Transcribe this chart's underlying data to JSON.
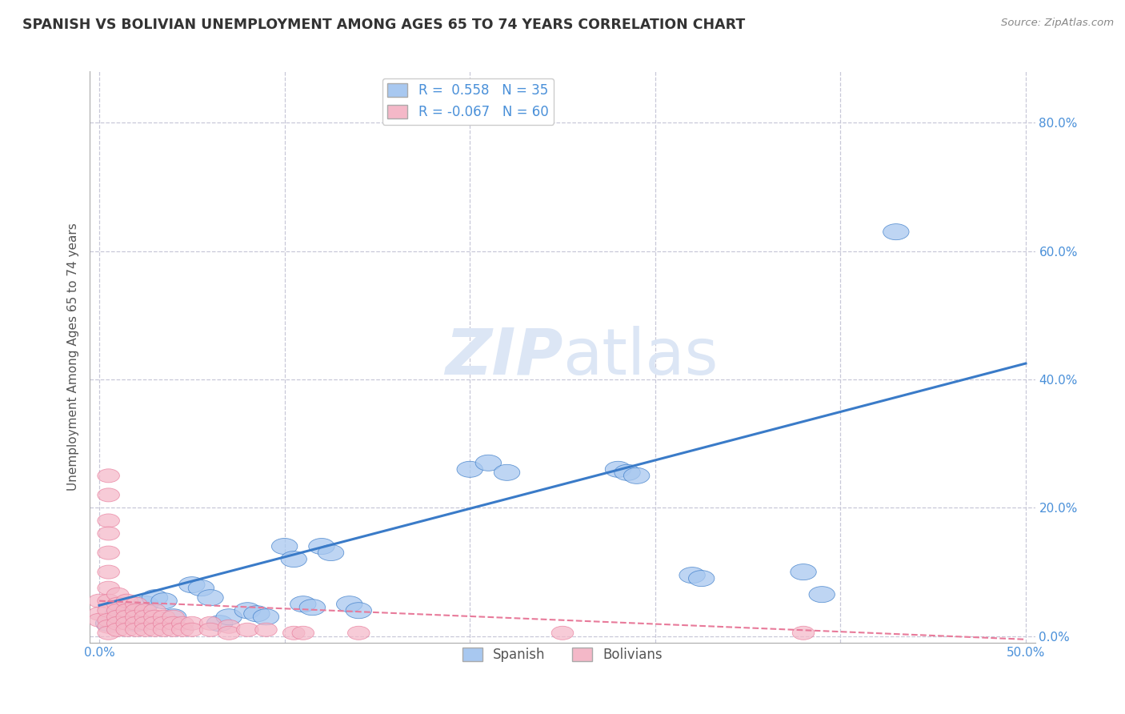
{
  "title": "SPANISH VS BOLIVIAN UNEMPLOYMENT AMONG AGES 65 TO 74 YEARS CORRELATION CHART",
  "source": "Source: ZipAtlas.com",
  "ylabel": "Unemployment Among Ages 65 to 74 years",
  "xlim": [
    -0.005,
    0.505
  ],
  "ylim": [
    -0.01,
    0.88
  ],
  "xticks": [
    0.0,
    0.1,
    0.2,
    0.3,
    0.4,
    0.5
  ],
  "yticks": [
    0.0,
    0.2,
    0.4,
    0.6,
    0.8
  ],
  "xtick_labels": [
    "0.0%",
    "",
    "",
    "",
    "",
    "50.0%"
  ],
  "ytick_labels_right": [
    "0.0%",
    "20.0%",
    "40.0%",
    "60.0%",
    "80.0%"
  ],
  "spanish_R": 0.558,
  "spanish_N": 35,
  "bolivian_R": -0.067,
  "bolivian_N": 60,
  "spanish_color": "#a8c8f0",
  "bolivian_color": "#f4b8c8",
  "spanish_line_color": "#3a7bc8",
  "bolivian_line_color": "#e87a9a",
  "background_color": "#ffffff",
  "grid_color": "#c8c8d8",
  "title_color": "#333333",
  "axis_color": "#4a90d9",
  "watermark_color": "#dce6f5",
  "legend_label_spanish": "Spanish",
  "legend_label_bolivians": "Bolivians",
  "spanish_trend_start_y": 0.048,
  "spanish_trend_end_y": 0.425,
  "bolivian_trend_start_y": 0.055,
  "bolivian_trend_end_y": -0.005,
  "spanish_points": [
    [
      0.005,
      0.02
    ],
    [
      0.01,
      0.035
    ],
    [
      0.015,
      0.04
    ],
    [
      0.02,
      0.02
    ],
    [
      0.025,
      0.05
    ],
    [
      0.03,
      0.06
    ],
    [
      0.035,
      0.055
    ],
    [
      0.04,
      0.03
    ],
    [
      0.05,
      0.08
    ],
    [
      0.055,
      0.075
    ],
    [
      0.06,
      0.06
    ],
    [
      0.065,
      0.02
    ],
    [
      0.07,
      0.03
    ],
    [
      0.08,
      0.04
    ],
    [
      0.085,
      0.035
    ],
    [
      0.09,
      0.03
    ],
    [
      0.1,
      0.14
    ],
    [
      0.105,
      0.12
    ],
    [
      0.11,
      0.05
    ],
    [
      0.115,
      0.045
    ],
    [
      0.12,
      0.14
    ],
    [
      0.125,
      0.13
    ],
    [
      0.135,
      0.05
    ],
    [
      0.14,
      0.04
    ],
    [
      0.2,
      0.26
    ],
    [
      0.21,
      0.27
    ],
    [
      0.22,
      0.255
    ],
    [
      0.28,
      0.26
    ],
    [
      0.285,
      0.255
    ],
    [
      0.29,
      0.25
    ],
    [
      0.32,
      0.095
    ],
    [
      0.325,
      0.09
    ],
    [
      0.38,
      0.1
    ],
    [
      0.39,
      0.065
    ],
    [
      0.43,
      0.63
    ]
  ],
  "bolivian_points": [
    [
      0.0,
      0.055
    ],
    [
      0.0,
      0.035
    ],
    [
      0.0,
      0.025
    ],
    [
      0.005,
      0.25
    ],
    [
      0.005,
      0.22
    ],
    [
      0.005,
      0.18
    ],
    [
      0.005,
      0.16
    ],
    [
      0.005,
      0.13
    ],
    [
      0.005,
      0.1
    ],
    [
      0.005,
      0.075
    ],
    [
      0.005,
      0.055
    ],
    [
      0.005,
      0.04
    ],
    [
      0.005,
      0.025
    ],
    [
      0.005,
      0.015
    ],
    [
      0.005,
      0.005
    ],
    [
      0.01,
      0.065
    ],
    [
      0.01,
      0.05
    ],
    [
      0.01,
      0.04
    ],
    [
      0.01,
      0.03
    ],
    [
      0.01,
      0.02
    ],
    [
      0.01,
      0.01
    ],
    [
      0.015,
      0.055
    ],
    [
      0.015,
      0.04
    ],
    [
      0.015,
      0.03
    ],
    [
      0.015,
      0.02
    ],
    [
      0.015,
      0.01
    ],
    [
      0.02,
      0.05
    ],
    [
      0.02,
      0.04
    ],
    [
      0.02,
      0.03
    ],
    [
      0.02,
      0.02
    ],
    [
      0.02,
      0.01
    ],
    [
      0.025,
      0.04
    ],
    [
      0.025,
      0.03
    ],
    [
      0.025,
      0.02
    ],
    [
      0.025,
      0.01
    ],
    [
      0.03,
      0.04
    ],
    [
      0.03,
      0.03
    ],
    [
      0.03,
      0.02
    ],
    [
      0.03,
      0.01
    ],
    [
      0.035,
      0.03
    ],
    [
      0.035,
      0.02
    ],
    [
      0.035,
      0.01
    ],
    [
      0.04,
      0.03
    ],
    [
      0.04,
      0.02
    ],
    [
      0.04,
      0.01
    ],
    [
      0.045,
      0.02
    ],
    [
      0.045,
      0.01
    ],
    [
      0.05,
      0.02
    ],
    [
      0.05,
      0.01
    ],
    [
      0.06,
      0.02
    ],
    [
      0.06,
      0.01
    ],
    [
      0.07,
      0.015
    ],
    [
      0.07,
      0.005
    ],
    [
      0.08,
      0.01
    ],
    [
      0.09,
      0.01
    ],
    [
      0.105,
      0.005
    ],
    [
      0.11,
      0.005
    ],
    [
      0.14,
      0.005
    ],
    [
      0.25,
      0.005
    ],
    [
      0.38,
      0.005
    ]
  ]
}
